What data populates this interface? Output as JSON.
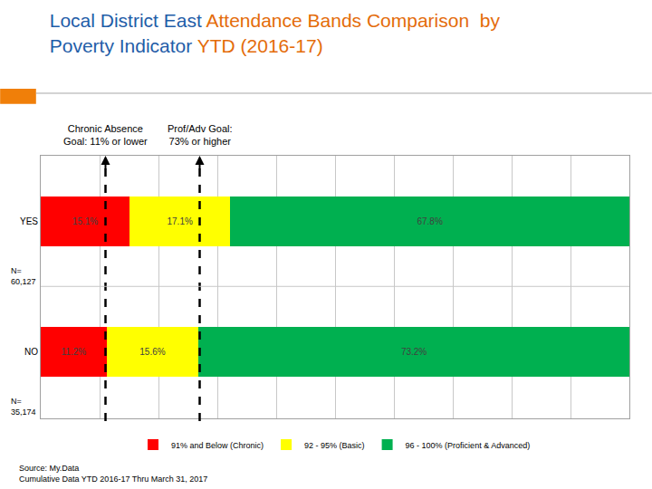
{
  "chart_data": {
    "type": "bar",
    "orientation": "horizontal",
    "stacked": true,
    "title": [
      [
        {
          "text": "Local District East ",
          "color": "#1f5da8"
        },
        {
          "text": "Attendance Bands Comparison  by",
          "color": "#e46c0a"
        }
      ],
      [
        {
          "text": "Poverty Indicator ",
          "color": "#1f5da8"
        },
        {
          "text": "YTD (2016-17)",
          "color": "#e46c0a"
        }
      ]
    ],
    "categories": [
      "YES",
      "NO"
    ],
    "category_notes": [
      [
        "N=",
        "60,127"
      ],
      [
        "N=",
        "35,174"
      ]
    ],
    "series": [
      {
        "name": "91% and Below (Chronic)",
        "color": "#ff0000",
        "values": [
          15.1,
          11.2
        ],
        "value_labels": [
          "15.1%",
          "11.2%"
        ]
      },
      {
        "name": "92 - 95% (Basic)",
        "color": "#ffff00",
        "values": [
          17.1,
          15.6
        ],
        "value_labels": [
          "17.1%",
          "15.6%"
        ]
      },
      {
        "name": "96 - 100% (Proficient & Advanced)",
        "color": "#00b050",
        "values": [
          67.8,
          73.2
        ],
        "value_labels": [
          "67.8%",
          "73.2%"
        ]
      }
    ],
    "xlim": [
      0,
      100
    ],
    "xticks": [
      0,
      10,
      20,
      30,
      40,
      50,
      60,
      70,
      80,
      90,
      100
    ],
    "tick_labels": "y",
    "grid": true,
    "legend": "bottom",
    "data_labels": true,
    "goal_lines": [
      {
        "text": [
          "Chronic Absence",
          "Goal: 11% or lower"
        ],
        "x": 11
      },
      {
        "text": [
          "Prof/Adv Goal:",
          "73% or higher"
        ],
        "x": 27
      }
    ],
    "source": [
      "Source: My.Data",
      "Cumulative Data YTD 2016-17 Thru March 31, 2017"
    ]
  }
}
